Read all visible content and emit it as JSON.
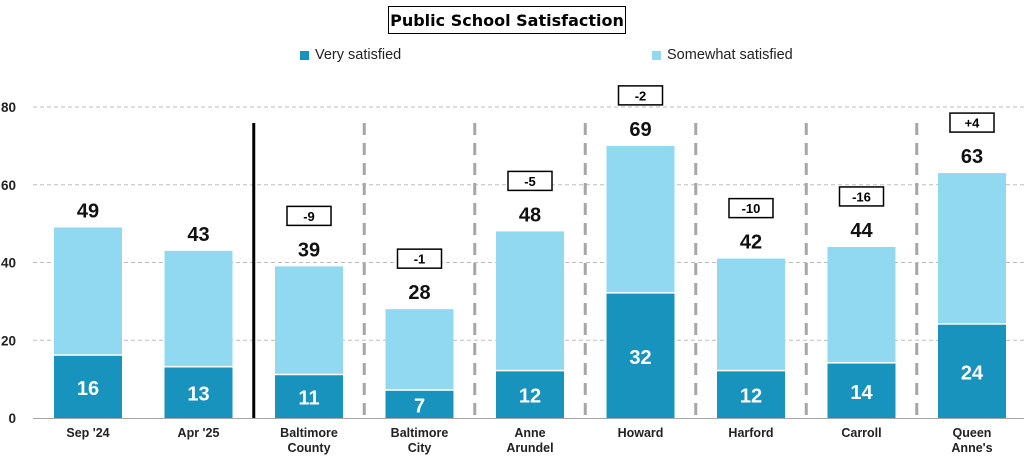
{
  "chart_data": {
    "type": "bar",
    "stacked": true,
    "title": "Public School Satisfaction",
    "categories": [
      "Sep '24",
      "Apr '25",
      "Baltimore County",
      "Baltimore City",
      "Anne Arundel",
      "Howard",
      "Harford",
      "Carroll",
      "Queen Anne's"
    ],
    "category_lines": [
      [
        "Sep '24"
      ],
      [
        "Apr '25"
      ],
      [
        "Baltimore",
        "County"
      ],
      [
        "Baltimore",
        "City"
      ],
      [
        "Anne",
        "Arundel"
      ],
      [
        "Howard"
      ],
      [
        "Harford"
      ],
      [
        "Carroll"
      ],
      [
        "Queen",
        "Anne's"
      ]
    ],
    "series": [
      {
        "name": "Very satisfied",
        "color": "#1893be",
        "values": [
          16,
          13,
          11,
          7,
          12,
          32,
          12,
          14,
          24
        ]
      },
      {
        "name": "Somewhat satisfied",
        "color": "#91d9f1",
        "values": [
          33,
          30,
          28,
          21,
          36,
          38,
          29,
          30,
          39
        ]
      }
    ],
    "totals": [
      "49",
      "43",
      "39",
      "28",
      "48",
      "69",
      "42",
      "44",
      "63"
    ],
    "changes": [
      null,
      null,
      "-9",
      "-1",
      "-5",
      "-2",
      "-10",
      "-16",
      "+4"
    ],
    "y_ticks": [
      "0",
      "20",
      "40",
      "60",
      "80"
    ],
    "ylim": [
      0,
      80
    ],
    "grid": true,
    "legend_position": "top",
    "separators": {
      "solid_after_index": 1,
      "dashed_between_counties": true
    }
  }
}
